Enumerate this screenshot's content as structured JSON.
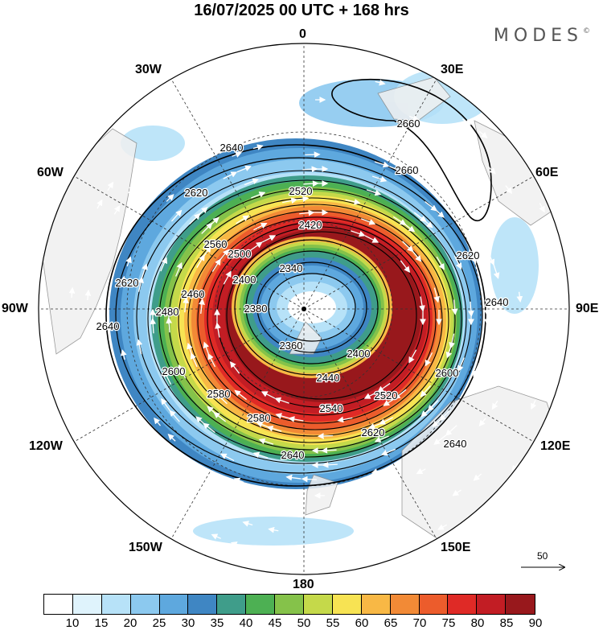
{
  "title": "16/07/2025  00 UTC  + 168 hrs",
  "brand": "MODES",
  "brand_mark": "©",
  "longitude_labels": {
    "n0": "0",
    "n30e": "30E",
    "n60e": "60E",
    "n90e": "90E",
    "n120e": "120E",
    "n150e": "150E",
    "n180": "180",
    "n150w": "150W",
    "n120w": "120W",
    "n90w": "90W",
    "n60w": "60W",
    "n30w": "30W"
  },
  "contour_labels": [
    "2660",
    "2660",
    "2640",
    "2640",
    "2640",
    "2640",
    "2640",
    "2620",
    "2620",
    "2620",
    "2620",
    "2600",
    "2600",
    "2580",
    "2580",
    "2560",
    "2540",
    "2520",
    "2520",
    "2500",
    "2480",
    "2460",
    "2440",
    "2420",
    "2400",
    "2400",
    "2380",
    "2360",
    "2340"
  ],
  "reference_vector": "50",
  "colorbar": {
    "ticks": [
      "10",
      "15",
      "20",
      "25",
      "30",
      "35",
      "40",
      "45",
      "50",
      "55",
      "60",
      "65",
      "70",
      "75",
      "80",
      "85",
      "90"
    ],
    "colors": [
      "#ffffff",
      "#dff3fc",
      "#b7e2f8",
      "#8cc9ef",
      "#5ea8de",
      "#3f86c3",
      "#3f9d8a",
      "#4db053",
      "#85c24a",
      "#c5d94a",
      "#f7e353",
      "#f8b845",
      "#f28a36",
      "#ec5c2c",
      "#df2a26",
      "#c21d24",
      "#98181c"
    ]
  },
  "colors": {
    "land": "#f0f0f0",
    "contour": "#000000",
    "arrow": "#ffffff"
  }
}
